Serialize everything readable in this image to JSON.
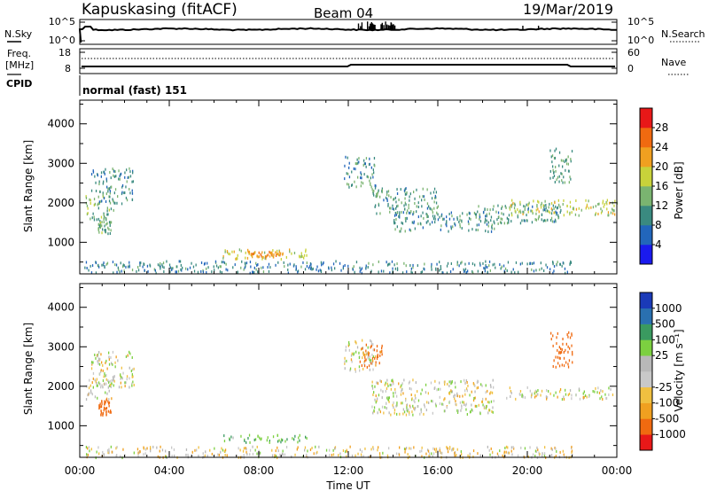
{
  "header": {
    "station": "Kapuskasing (fitACF)",
    "beam": "Beam 04",
    "date": "19/Mar/2019",
    "cpid_mode": "normal (fast) 151"
  },
  "noise_panel": {
    "left_label": "N.Sky",
    "right_label": "N.Search",
    "left_ticks": [
      "10^5",
      "10^0"
    ],
    "right_ticks": [
      "10^5",
      "10^0"
    ]
  },
  "freq_panel": {
    "left_label_line1": "Freq.",
    "left_label_line2": "[MHz]",
    "right_label": "Nave",
    "left_ticks": [
      "18",
      "8"
    ],
    "right_ticks": [
      "60",
      "0"
    ],
    "cpid_label": "CPID"
  },
  "colors": {
    "power_scale": [
      "#1a1aee",
      "#2266bb",
      "#3a8a80",
      "#7ab470",
      "#c8d23a",
      "#f0a020",
      "#f06a10",
      "#e81818"
    ],
    "velocity_scale": [
      "#e81818",
      "#f06a10",
      "#f0a020",
      "#f0c040",
      "#c8c8c8",
      "#b8b8b8",
      "#7cd040",
      "#3a9a60",
      "#2a70b0",
      "#1a3ab8"
    ]
  },
  "chart_data": [
    {
      "type": "heatmap",
      "panel": "power",
      "ylabel": "Slant Range [km]",
      "ylim": [
        200,
        4600
      ],
      "yticks": [
        1000,
        2000,
        3000,
        4000
      ],
      "xlim": [
        0,
        24
      ],
      "colorbar_label": "Power [dB]",
      "colorbar_ticks": [
        "4",
        "8",
        "12",
        "16",
        "20",
        "24",
        "28"
      ],
      "colorbar_range": [
        0,
        32
      ],
      "regions": [
        {
          "t0": 0.2,
          "t1": 1.5,
          "r0": 1600,
          "r1": 2200,
          "val": 14
        },
        {
          "t0": 0.5,
          "t1": 2.4,
          "r0": 2000,
          "r1": 2900,
          "val": 10
        },
        {
          "t0": 0.8,
          "t1": 1.4,
          "r0": 1250,
          "r1": 1650,
          "val": 13
        },
        {
          "t0": 6.3,
          "t1": 10.2,
          "r0": 600,
          "r1": 850,
          "val": 18
        },
        {
          "t0": 7.5,
          "t1": 9.2,
          "r0": 650,
          "r1": 800,
          "val": 23
        },
        {
          "t0": 0.2,
          "t1": 22.0,
          "r0": 250,
          "r1": 550,
          "val": 9
        },
        {
          "t0": 11.8,
          "t1": 13.2,
          "r0": 2400,
          "r1": 3200,
          "val": 10
        },
        {
          "t0": 13.0,
          "t1": 16.0,
          "r0": 1700,
          "r1": 2400,
          "val": 11
        },
        {
          "t0": 14.0,
          "t1": 18.5,
          "r0": 1300,
          "r1": 1800,
          "val": 10
        },
        {
          "t0": 17.5,
          "t1": 21.5,
          "r0": 1500,
          "r1": 2000,
          "val": 11
        },
        {
          "t0": 19.0,
          "t1": 24.0,
          "r0": 1700,
          "r1": 2100,
          "val": 17
        },
        {
          "t0": 21.0,
          "t1": 22.0,
          "r0": 2500,
          "r1": 3400,
          "val": 12
        }
      ]
    },
    {
      "type": "heatmap",
      "panel": "velocity",
      "ylabel": "Slant Range [km]",
      "ylim": [
        200,
        4600
      ],
      "yticks": [
        1000,
        2000,
        3000,
        4000
      ],
      "xlim": [
        0,
        24
      ],
      "xlabel": "Time UT",
      "xticks": [
        "00:00",
        "04:00",
        "08:00",
        "12:00",
        "16:00",
        "20:00",
        "00:00"
      ],
      "colorbar_label": "Velocity [m s⁻¹]",
      "colorbar_ticks": [
        "-1000",
        "-500",
        "-100",
        "-25",
        "25",
        "100",
        "500",
        "1000"
      ],
      "regions": [
        {
          "t0": 0.2,
          "t1": 1.5,
          "r0": 1700,
          "r1": 2200,
          "val": 0
        },
        {
          "t0": 0.5,
          "t1": 2.4,
          "r0": 2000,
          "r1": 2900,
          "val": 0
        },
        {
          "t0": 0.8,
          "t1": 1.4,
          "r0": 1300,
          "r1": 1700,
          "val": -200
        },
        {
          "t0": 6.3,
          "t1": 10.2,
          "r0": 600,
          "r1": 800,
          "val": 80
        },
        {
          "t0": 0.2,
          "t1": 22.0,
          "r0": 220,
          "r1": 500,
          "val": -20
        },
        {
          "t0": 11.8,
          "t1": 13.2,
          "r0": 2400,
          "r1": 3200,
          "val": 0
        },
        {
          "t0": 12.5,
          "t1": 13.5,
          "r0": 2500,
          "r1": 3100,
          "val": -150
        },
        {
          "t0": 13.0,
          "t1": 18.5,
          "r0": 1300,
          "r1": 2200,
          "val": 0
        },
        {
          "t0": 19.0,
          "t1": 24.0,
          "r0": 1700,
          "r1": 2000,
          "val": 0
        },
        {
          "t0": 21.0,
          "t1": 22.0,
          "r0": 2500,
          "r1": 3400,
          "val": -300
        }
      ]
    }
  ]
}
